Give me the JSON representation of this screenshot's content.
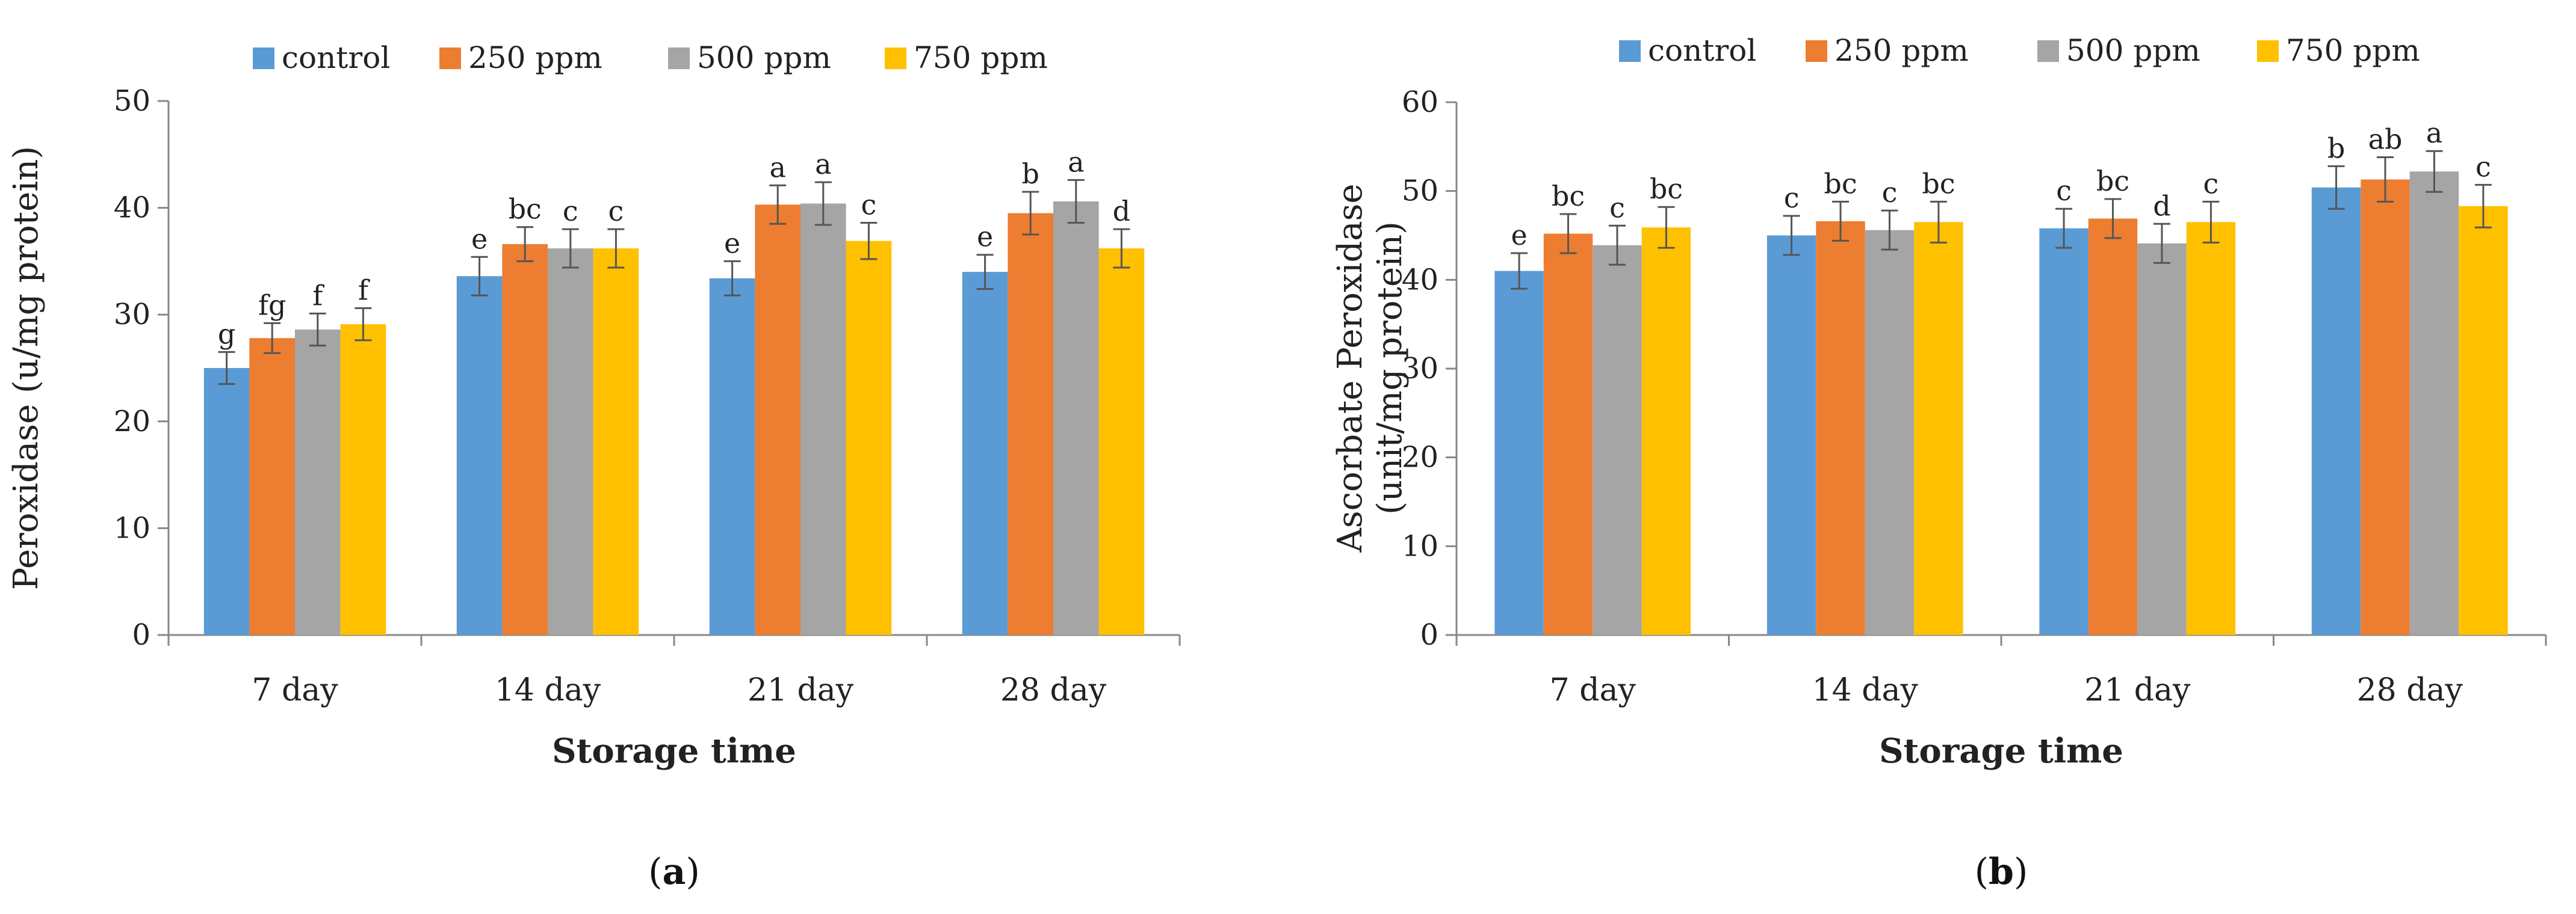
{
  "colors": {
    "control": "#5b9bd5",
    "250 ppm": "#ed7d31",
    "500 ppm": "#a5a5a5",
    "750 ppm": "#ffc000",
    "axis": "#888888",
    "grid": "#d9d9d9",
    "error": "#555555"
  },
  "chart_data": [
    {
      "type": "bar",
      "panel": "(a)",
      "title": "",
      "ylabel": "Peroxidase (u/mg protein)",
      "xlabel": "Storage time",
      "ylim": [
        0,
        50
      ],
      "yticks": [
        0,
        10,
        20,
        30,
        40,
        50
      ],
      "grid": false,
      "legend": "top",
      "categories": [
        "7 day",
        "14 day",
        "21 day",
        "28 day"
      ],
      "series": [
        {
          "name": "control",
          "values": [
            25.0,
            33.6,
            33.4,
            34.0
          ],
          "errors": [
            1.5,
            1.8,
            1.6,
            1.6
          ],
          "labels": [
            "g",
            "e",
            "e",
            "e"
          ]
        },
        {
          "name": "250 ppm",
          "values": [
            27.8,
            36.6,
            40.3,
            39.5
          ],
          "errors": [
            1.4,
            1.6,
            1.8,
            2.0
          ],
          "labels": [
            "fg",
            "bc",
            "a",
            "b"
          ]
        },
        {
          "name": "500 ppm",
          "values": [
            28.6,
            36.2,
            40.4,
            40.6
          ],
          "errors": [
            1.5,
            1.8,
            2.0,
            2.0
          ],
          "labels": [
            "f",
            "c",
            "a",
            "a"
          ]
        },
        {
          "name": "750 ppm",
          "values": [
            29.1,
            36.2,
            36.9,
            36.2
          ],
          "errors": [
            1.5,
            1.8,
            1.7,
            1.8
          ],
          "labels": [
            "f",
            "c",
            "c",
            "d"
          ]
        }
      ]
    },
    {
      "type": "bar",
      "panel": "(b)",
      "title": "",
      "ylabel": "Ascorbate Peroxidase (unit/mg protein)",
      "ylabel_lines": [
        "Ascorbate Peroxidase",
        "(unit/mg protein)"
      ],
      "xlabel": "Storage time",
      "ylim": [
        0,
        60
      ],
      "yticks": [
        0,
        10,
        20,
        30,
        40,
        50,
        60
      ],
      "grid": false,
      "legend": "top",
      "categories": [
        "7 day",
        "14 day",
        "21 day",
        "28 day"
      ],
      "series": [
        {
          "name": "control",
          "values": [
            41.0,
            45.0,
            45.8,
            50.4
          ],
          "errors": [
            2.0,
            2.2,
            2.2,
            2.4
          ],
          "labels": [
            "e",
            "c",
            "c",
            "b"
          ]
        },
        {
          "name": "250 ppm",
          "values": [
            45.2,
            46.6,
            46.9,
            51.3
          ],
          "errors": [
            2.2,
            2.2,
            2.2,
            2.5
          ],
          "labels": [
            "bc",
            "bc",
            "bc",
            "ab"
          ]
        },
        {
          "name": "500 ppm",
          "values": [
            43.9,
            45.6,
            44.1,
            52.2
          ],
          "errors": [
            2.2,
            2.2,
            2.2,
            2.3
          ],
          "labels": [
            "c",
            "c",
            "d",
            "a"
          ]
        },
        {
          "name": "750 ppm",
          "values": [
            45.9,
            46.5,
            46.5,
            48.3
          ],
          "errors": [
            2.3,
            2.3,
            2.3,
            2.4
          ],
          "labels": [
            "bc",
            "bc",
            "c",
            "c"
          ]
        }
      ]
    }
  ]
}
